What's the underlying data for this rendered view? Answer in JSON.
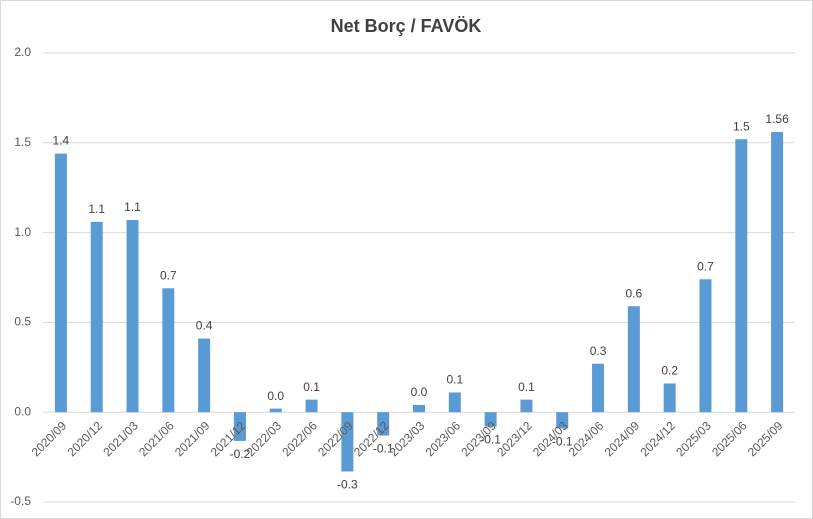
{
  "chart_data": {
    "type": "bar",
    "title": "Net Borç / FAVÖK",
    "categories": [
      "2020/09",
      "2020/12",
      "2021/03",
      "2021/06",
      "2021/09",
      "2021/12",
      "2022/03",
      "2022/06",
      "2022/09",
      "2022/12",
      "2023/03",
      "2023/06",
      "2023/09",
      "2023/12",
      "2024/03",
      "2024/06",
      "2024/09",
      "2024/12",
      "2025/03",
      "2025/06",
      "2025/09"
    ],
    "values": [
      1.44,
      1.06,
      1.07,
      0.69,
      0.41,
      -0.16,
      0.02,
      0.07,
      -0.33,
      -0.13,
      0.04,
      0.11,
      -0.08,
      0.07,
      -0.09,
      0.27,
      0.59,
      0.16,
      0.74,
      1.52,
      1.56
    ],
    "value_labels": [
      "1.4",
      "1.1",
      "1.1",
      "0.7",
      "0.4",
      "-0.2",
      "0.0",
      "0.1",
      "-0.3",
      "-0.1",
      "0.0",
      "0.1",
      "-0.1",
      "0.1",
      "-0.1",
      "0.3",
      "0.6",
      "0.2",
      "0.7",
      "1.5",
      "1.56"
    ],
    "color": "#5b9bd5",
    "ylim": [
      -0.5,
      2.0
    ],
    "yticks": [
      -0.5,
      {
        "value": 0,
        "label": "0.0"
      },
      0.5,
      {
        "value": 1,
        "label": "1.0"
      },
      1.5,
      {
        "value": 2,
        "label": "2.0"
      }
    ],
    "grid": true
  }
}
